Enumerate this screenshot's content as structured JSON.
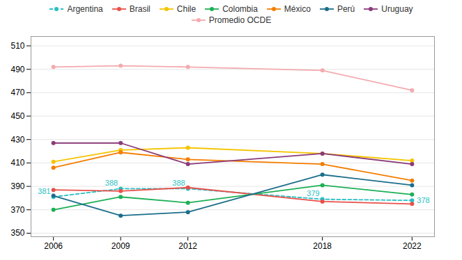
{
  "chart_data": {
    "type": "line",
    "x": [
      2006,
      2009,
      2012,
      2018,
      2022
    ],
    "xlim": [
      2005.0,
      2023.0
    ],
    "xticks": [
      2006,
      2009,
      2012,
      2018,
      2022
    ],
    "ylim": [
      347,
      518
    ],
    "yticks": [
      350,
      370,
      390,
      410,
      430,
      450,
      470,
      490,
      510
    ],
    "grid": true,
    "legend": "top",
    "series": [
      {
        "name": "Argentina",
        "color": "#29BFC4",
        "values": [
          381,
          388,
          388,
          379,
          378
        ],
        "line_style": "dashed",
        "marker": "circle",
        "data_labels": true
      },
      {
        "name": "Brasil",
        "color": "#E8504A",
        "values": [
          387,
          386,
          389,
          377,
          375
        ],
        "line_style": "solid",
        "marker": "circle"
      },
      {
        "name": "Chile",
        "color": "#F5C400",
        "values": [
          411,
          421,
          423,
          418,
          412
        ],
        "line_style": "solid",
        "marker": "circle"
      },
      {
        "name": "Colombia",
        "color": "#1CB055",
        "values": [
          370,
          381,
          376,
          391,
          383
        ],
        "line_style": "solid",
        "marker": "circle"
      },
      {
        "name": "México",
        "color": "#F57D00",
        "values": [
          406,
          419,
          413,
          409,
          395
        ],
        "line_style": "solid",
        "marker": "circle"
      },
      {
        "name": "Perú",
        "color": "#1B6E8A",
        "values": [
          382,
          365,
          368,
          400,
          391
        ],
        "line_style": "solid",
        "marker": "circle"
      },
      {
        "name": "Uruguay",
        "color": "#8B3B78",
        "values": [
          427,
          427,
          409,
          418,
          409
        ],
        "line_style": "solid",
        "marker": "circle"
      },
      {
        "name": "Promedio OCDE",
        "color": "#F4AAAF",
        "values": [
          492,
          493,
          492,
          489,
          472
        ],
        "line_style": "solid",
        "marker": "circle"
      }
    ]
  }
}
